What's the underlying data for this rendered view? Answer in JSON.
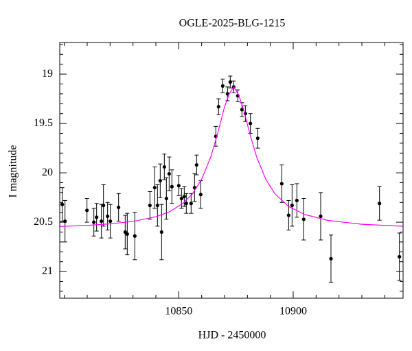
{
  "chart_data": {
    "type": "scatter",
    "title": "OGLE-2025-BLG-1215",
    "x_label": "HJD - 2450000",
    "y_label": "I magnitude",
    "xlim": [
      10798,
      10948
    ],
    "ylim": [
      21.27,
      18.68
    ],
    "xticks": [
      10850,
      10900
    ],
    "xticks_minor": [
      10800,
      10810,
      10820,
      10830,
      10840,
      10860,
      10870,
      10880,
      10890,
      10910,
      10920,
      10930,
      10940
    ],
    "yticks": [
      19,
      19.5,
      20,
      20.5,
      21
    ],
    "yticks_minor": [
      18.7,
      18.8,
      18.9,
      19.1,
      19.2,
      19.3,
      19.4,
      19.6,
      19.7,
      19.8,
      19.9,
      20.1,
      20.2,
      20.3,
      20.4,
      20.6,
      20.7,
      20.8,
      20.9,
      21.1,
      21.2
    ],
    "series": [
      {
        "type": "errorbar",
        "color": "#000000",
        "x": [
          10799.1,
          10800.3,
          10809.9,
          10812.9,
          10814.1,
          10816.2,
          10817.1,
          10818.9,
          10820.1,
          10823.7,
          10826.6,
          10827.5,
          10830.8,
          10837.4,
          10839.5,
          10840.7,
          10841.9,
          10842.5,
          10843.7,
          10844.6,
          10845.8,
          10847.0,
          10850.0,
          10851.2,
          10852.4,
          10853.3,
          10855.4,
          10856.9,
          10857.8,
          10859.6,
          10866.2,
          10867.4,
          10869.2,
          10871.3,
          10872.5,
          10874.0,
          10875.8,
          10877.6,
          10879.1,
          10881.3,
          10884.5,
          10895.0,
          10898.0,
          10899.5,
          10901.6,
          10904.6,
          10912.0,
          10916.5,
          10937.7,
          10946.4
        ],
        "values": [
          20.32,
          20.49,
          20.38,
          20.5,
          20.45,
          20.49,
          20.33,
          20.44,
          20.49,
          20.35,
          20.6,
          20.62,
          20.64,
          20.33,
          20.15,
          20.33,
          20.08,
          20.6,
          19.94,
          20.26,
          20.01,
          20.14,
          20.13,
          20.26,
          20.24,
          20.31,
          20.31,
          20.15,
          19.92,
          20.22,
          19.63,
          19.33,
          19.12,
          19.2,
          19.08,
          19.13,
          19.22,
          19.36,
          19.4,
          19.5,
          19.65,
          20.11,
          20.43,
          20.33,
          20.28,
          20.47,
          20.44,
          20.87,
          20.31,
          20.85
        ],
        "errors": [
          0.17,
          0.21,
          0.12,
          0.14,
          0.14,
          0.17,
          0.21,
          0.14,
          0.17,
          0.14,
          0.17,
          0.21,
          0.24,
          0.14,
          0.21,
          0.21,
          0.17,
          0.28,
          0.13,
          0.21,
          0.17,
          0.17,
          0.1,
          0.1,
          0.1,
          0.1,
          0.1,
          0.14,
          0.1,
          0.14,
          0.1,
          0.08,
          0.07,
          0.07,
          0.06,
          0.06,
          0.06,
          0.07,
          0.08,
          0.1,
          0.1,
          0.19,
          0.15,
          0.21,
          0.17,
          0.21,
          0.24,
          0.24,
          0.17,
          0.24
        ]
      },
      {
        "type": "line",
        "color": "#ff00ff",
        "x": [
          10798,
          10810,
          10820,
          10830,
          10840,
          10846,
          10852,
          10856,
          10860,
          10864,
          10867,
          10870,
          10872,
          10874,
          10876,
          10878,
          10881,
          10884,
          10888,
          10892,
          10898,
          10905,
          10915,
          10930,
          10948
        ],
        "values": [
          20.543,
          20.532,
          20.517,
          20.492,
          20.445,
          20.394,
          20.306,
          20.212,
          20.065,
          19.838,
          19.6,
          19.332,
          19.203,
          19.129,
          19.203,
          19.332,
          19.6,
          19.838,
          20.065,
          20.212,
          20.341,
          20.422,
          20.481,
          20.521,
          20.541
        ]
      }
    ]
  }
}
